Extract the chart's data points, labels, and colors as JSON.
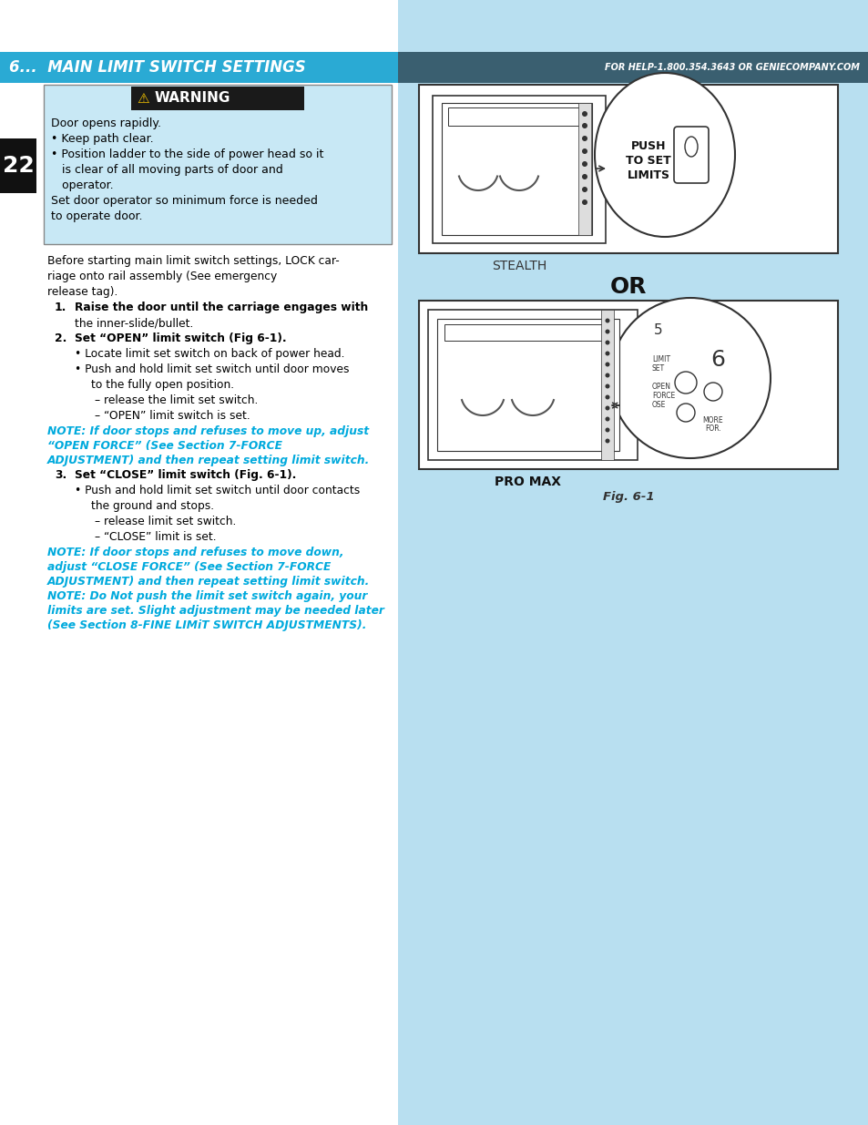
{
  "page_bg": "#b8dff0",
  "white_bg": "#ffffff",
  "header_bg_left": "#2a8ab8",
  "header_bg_right": "#3a5a6a",
  "header_text_color": "#ffffff",
  "header_title": "6...  MAIN LIMIT SWITCH SETTINGS",
  "header_right": "FOR HELP-1.800.354.3643 OR GENIECOMPANY.COM",
  "page_num": "22",
  "page_num_bg": "#1a1a1a",
  "warning_header_bg": "#1a1a1a",
  "warning_bg": "#c8e8f5",
  "warning_border": "#888888",
  "warning_text_lines": [
    "Door opens rapidly.",
    "• Keep path clear.",
    "• Position ladder to the side of power head so it",
    "   is clear of all moving parts of door and",
    "   operator.",
    "Set door operator so minimum force is needed",
    "to operate door."
  ],
  "body_text_color": "#000000",
  "note_text_color": "#00aadd",
  "body_lines": [
    {
      "type": "normal",
      "text": "Before starting main limit switch settings, LOCK car-"
    },
    {
      "type": "normal",
      "text": "riage onto rail assembly (See emergency"
    },
    {
      "type": "normal",
      "text": "release tag)."
    },
    {
      "type": "numbered",
      "num": "1.",
      "text": "Raise the door until the carriage engages with"
    },
    {
      "type": "indent",
      "text": "the inner-slide/bullet."
    },
    {
      "type": "numbered",
      "num": "2.",
      "text": "Set “OPEN” limit switch (Fig 6-1)."
    },
    {
      "type": "bullet",
      "text": "Locate limit set switch on back of power head."
    },
    {
      "type": "bullet",
      "text": "Push and hold limit set switch until door moves"
    },
    {
      "type": "indent2",
      "text": "to the fully open position."
    },
    {
      "type": "dash",
      "text": "– release the limit set switch."
    },
    {
      "type": "dash",
      "text": "– “OPEN” limit switch is set."
    },
    {
      "type": "note",
      "text": "NOTE: If door stops and refuses to move up, adjust"
    },
    {
      "type": "note",
      "text": "“OPEN FORCE” (See Section 7-FORCE"
    },
    {
      "type": "note",
      "text": "ADJUSTMENT) and then repeat setting limit switch."
    },
    {
      "type": "numbered",
      "num": "3.",
      "text": "Set “CLOSE” limit switch (Fig. 6-1)."
    },
    {
      "type": "bullet",
      "text": "Push and hold limit set switch until door contacts"
    },
    {
      "type": "indent2",
      "text": "the ground and stops."
    },
    {
      "type": "dash",
      "text": "– release limit set switch."
    },
    {
      "type": "dash",
      "text": "– “CLOSE” limit is set."
    },
    {
      "type": "note",
      "text": "NOTE: If door stops and refuses to move down,"
    },
    {
      "type": "note",
      "text": "adjust “CLOSE FORCE” (See Section 7-FORCE"
    },
    {
      "type": "note",
      "text": "ADJUSTMENT) and then repeat setting limit switch."
    },
    {
      "type": "note",
      "text": "NOTE: Do Not push the limit set switch again, your"
    },
    {
      "type": "note",
      "text": "limits are set. Slight adjustment may be needed later"
    },
    {
      "type": "note",
      "text": "(See Section 8-FINE LIMiT SWITCH ADJUSTMENTS)."
    }
  ],
  "fig_label": "Fig. 6-1",
  "or_text": "OR",
  "stealth_label": "STEALTH",
  "promax_label": "PRO MAX"
}
